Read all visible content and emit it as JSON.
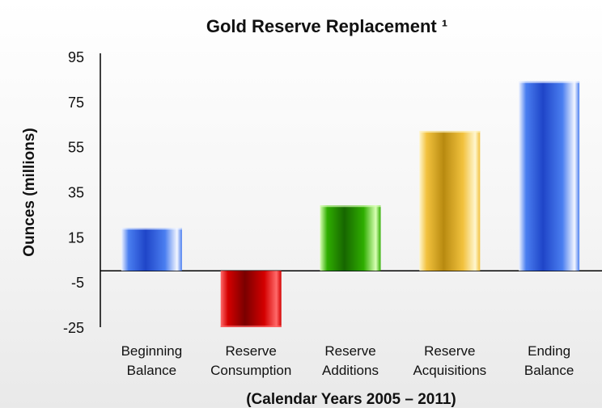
{
  "chart_data": {
    "type": "bar",
    "title": "Gold Reserve Replacement ¹",
    "xlabel": "(Calendar Years 2005 – 2011)",
    "ylabel": "Ounces (millions)",
    "ylim": [
      -25,
      95
    ],
    "yticks": [
      "95",
      "75",
      "55",
      "35",
      "15",
      "-5",
      "-25"
    ],
    "ytick_values": [
      95,
      75,
      55,
      35,
      15,
      -5,
      -25
    ],
    "grid": false,
    "legend": "none",
    "categories": [
      [
        "Beginning",
        "Balance"
      ],
      [
        "Reserve",
        "Consumption"
      ],
      [
        "Reserve",
        "Additions"
      ],
      [
        "Reserve",
        "Acquisitions"
      ],
      [
        "Ending",
        "Balance"
      ]
    ],
    "values": [
      19,
      -25,
      29,
      62,
      84
    ],
    "bar_colors": [
      {
        "dark": "#1f45c8",
        "mid": "#4a7ef0",
        "light": "#f3f6ff"
      },
      {
        "dark": "#7a0000",
        "mid": "#d40000",
        "light": "#ff6a6a"
      },
      {
        "dark": "#176600",
        "mid": "#2fae00",
        "light": "#d9ffb5"
      },
      {
        "dark": "#b88a10",
        "mid": "#f2c23e",
        "light": "#fff6cf"
      },
      {
        "dark": "#1f45c8",
        "mid": "#4a7ef0",
        "light": "#f3f6ff"
      }
    ]
  }
}
